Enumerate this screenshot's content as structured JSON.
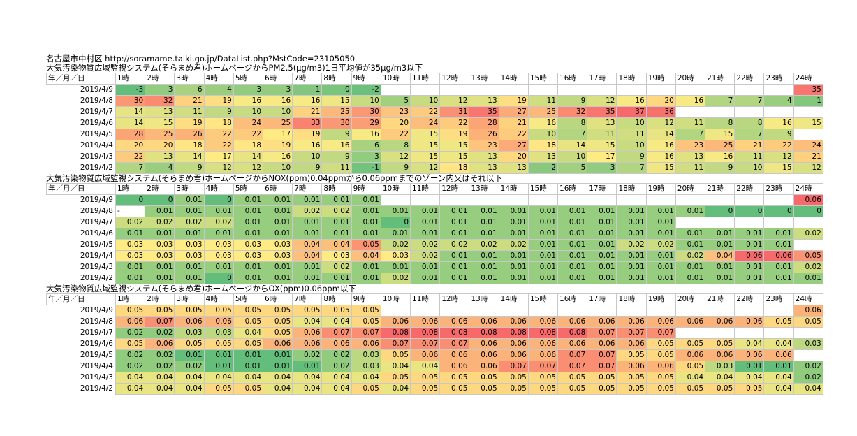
{
  "header_line": "名古屋市中村区 http://soramame.taiki.go.jp/DataList.php?MstCode=23105050",
  "hours": [
    "1時",
    "2時",
    "3時",
    "4時",
    "5時",
    "6時",
    "7時",
    "8時",
    "9時",
    "10時",
    "11時",
    "12時",
    "13時",
    "14時",
    "15時",
    "16時",
    "17時",
    "18時",
    "19時",
    "20時",
    "21時",
    "22時",
    "23時",
    "24時"
  ],
  "date_header": "年／月／日",
  "sections": [
    {
      "title": "大気汚染物質広域監視システム(そらまめ君)ホームページからPM2.5(μg/m3)1日平均値が35μg/m3以下",
      "kind": "pm",
      "rows": [
        {
          "date": "2019/4/9",
          "values": [
            "-3",
            "3",
            "6",
            "4",
            "3",
            "3",
            "1",
            "0",
            "-2",
            "",
            "",
            "",
            "",
            "",
            "",
            "",
            "",
            "",
            "",
            "",
            "",
            "",
            "",
            "35"
          ]
        },
        {
          "date": "2019/4/8",
          "values": [
            "30",
            "32",
            "21",
            "19",
            "16",
            "16",
            "16",
            "15",
            "10",
            "5",
            "10",
            "12",
            "13",
            "19",
            "11",
            "9",
            "12",
            "16",
            "20",
            "16",
            "7",
            "7",
            "4",
            "1"
          ]
        },
        {
          "date": "2019/4/7",
          "values": [
            "14",
            "13",
            "11",
            "9",
            "10",
            "10",
            "21",
            "25",
            "30",
            "23",
            "22",
            "31",
            "35",
            "27",
            "25",
            "32",
            "35",
            "37",
            "36",
            "",
            "",
            "",
            "",
            ""
          ]
        },
        {
          "date": "2019/4/6",
          "values": [
            "14",
            "15",
            "19",
            "18",
            "24",
            "25",
            "33",
            "30",
            "29",
            "20",
            "24",
            "22",
            "28",
            "21",
            "16",
            "8",
            "13",
            "10",
            "12",
            "11",
            "8",
            "8",
            "16",
            "15"
          ]
        },
        {
          "date": "2019/4/5",
          "values": [
            "28",
            "25",
            "26",
            "22",
            "22",
            "17",
            "19",
            "9",
            "16",
            "22",
            "15",
            "19",
            "26",
            "22",
            "10",
            "7",
            "11",
            "11",
            "14",
            "7",
            "15",
            "7",
            "9",
            ""
          ]
        },
        {
          "date": "2019/4/4",
          "values": [
            "20",
            "20",
            "18",
            "22",
            "18",
            "19",
            "16",
            "16",
            "6",
            "8",
            "15",
            "15",
            "23",
            "27",
            "18",
            "14",
            "15",
            "10",
            "16",
            "23",
            "25",
            "21",
            "22",
            "24"
          ]
        },
        {
          "date": "2019/4/3",
          "values": [
            "22",
            "13",
            "14",
            "17",
            "14",
            "16",
            "10",
            "9",
            "3",
            "12",
            "15",
            "15",
            "13",
            "20",
            "13",
            "10",
            "17",
            "9",
            "16",
            "13",
            "16",
            "11",
            "12",
            "21"
          ]
        },
        {
          "date": "2019/4/2",
          "values": [
            "7",
            "4",
            "9",
            "12",
            "12",
            "10",
            "9",
            "11",
            "-1",
            "9",
            "12",
            "18",
            "13",
            "13",
            "2",
            "5",
            "3",
            "7",
            "15",
            "11",
            "9",
            "10",
            "15",
            "12"
          ]
        }
      ]
    },
    {
      "title": "大気汚染物質広域監視システム(そらまめ君)ホームページからNOX(ppm)0.04ppmから0.06ppmまでのゾーン内又はそれ以下",
      "kind": "nox",
      "rows": [
        {
          "date": "2019/4/9",
          "values": [
            "0",
            "0",
            "0.01",
            "0",
            "0.01",
            "0.01",
            "0.01",
            "0.01",
            "0.01",
            "",
            "",
            "",
            "",
            "",
            "",
            "",
            "",
            "",
            "",
            "",
            "",
            "",
            "",
            "0.06"
          ]
        },
        {
          "date": "2019/4/8",
          "values": [
            "-",
            "0.01",
            "0.01",
            "0.01",
            "0.01",
            "0.01",
            "0.02",
            "0.02",
            "0.01",
            "0.01",
            "0.01",
            "0.01",
            "0.01",
            "0.01",
            "0.01",
            "0.01",
            "0.01",
            "0.01",
            "0.01",
            "0.01",
            "0",
            "0",
            "0",
            "0"
          ]
        },
        {
          "date": "2019/4/7",
          "values": [
            "0.02",
            "0.02",
            "0.02",
            "0.02",
            "0.01",
            "0.01",
            "0.01",
            "0.01",
            "0.01",
            "0",
            "0.01",
            "0.01",
            "0.01",
            "0.01",
            "0.01",
            "0.01",
            "0.01",
            "0.01",
            "0.01",
            "",
            "",
            "",
            "",
            ""
          ]
        },
        {
          "date": "2019/4/6",
          "values": [
            "0.01",
            "0.01",
            "0.01",
            "0.01",
            "0.01",
            "0.01",
            "0.01",
            "0.01",
            "0.01",
            "0.01",
            "0.01",
            "0.01",
            "0.01",
            "0.01",
            "0.01",
            "0.01",
            "0.01",
            "0.01",
            "0.01",
            "0.01",
            "0.01",
            "0.01",
            "0.01",
            "0.02"
          ]
        },
        {
          "date": "2019/4/5",
          "values": [
            "0.03",
            "0.03",
            "0.03",
            "0.03",
            "0.03",
            "0.03",
            "0.04",
            "0.04",
            "0.05",
            "0.02",
            "0.02",
            "0.02",
            "0.02",
            "0.02",
            "0.01",
            "0.01",
            "0.01",
            "0.02",
            "0.02",
            "0.01",
            "0.01",
            "0.01",
            "0.01",
            ""
          ]
        },
        {
          "date": "2019/4/4",
          "values": [
            "0.03",
            "0.03",
            "0.03",
            "0.03",
            "0.03",
            "0.03",
            "0.04",
            "0.03",
            "0.04",
            "0.03",
            "0.02",
            "0.01",
            "0.01",
            "0.01",
            "0.01",
            "0.01",
            "0.01",
            "0.01",
            "0.01",
            "0.02",
            "0.04",
            "0.06",
            "0.06",
            "0.05"
          ]
        },
        {
          "date": "2019/4/3",
          "values": [
            "0.01",
            "0.01",
            "0.01",
            "0.01",
            "0.01",
            "0.01",
            "0.01",
            "0.02",
            "0.01",
            "0.01",
            "0.01",
            "0.01",
            "0.01",
            "0.01",
            "0.01",
            "0.01",
            "0.01",
            "0.01",
            "0.01",
            "0.01",
            "0.01",
            "0.01",
            "0.01",
            "0.02"
          ]
        },
        {
          "date": "2019/4/2",
          "values": [
            "0.01",
            "0.01",
            "0.01",
            "0",
            "0.01",
            "0.01",
            "0.01",
            "0.01",
            "0.01",
            "0.02",
            "0.01",
            "0.01",
            "0.01",
            "0.01",
            "0.01",
            "0.01",
            "0.01",
            "0.01",
            "0.01",
            "0.01",
            "0.01",
            "0.01",
            "0.01",
            "0.01"
          ]
        }
      ]
    },
    {
      "title": "大気汚染物質広域監視システム(そらまめ君)ホームページからOX(ppm)0.06ppm以下",
      "kind": "ox",
      "rows": [
        {
          "date": "2019/4/9",
          "values": [
            "0.05",
            "0.05",
            "0.05",
            "0.05",
            "0.05",
            "0.05",
            "0.05",
            "0.05",
            "0.05",
            "",
            "",
            "",
            "",
            "",
            "",
            "",
            "",
            "",
            "",
            "",
            "",
            "",
            "",
            "0.06"
          ]
        },
        {
          "date": "2019/4/8",
          "values": [
            "0.06",
            "0.07",
            "0.06",
            "0.06",
            "0.05",
            "0.05",
            "0.04",
            "0.04",
            "0.05",
            "0.06",
            "0.06",
            "0.06",
            "0.06",
            "0.06",
            "0.06",
            "0.06",
            "0.06",
            "0.06",
            "0.06",
            "0.06",
            "0.06",
            "0.06",
            "0.05",
            "0.05"
          ]
        },
        {
          "date": "2019/4/7",
          "values": [
            "0.02",
            "0.02",
            "0.03",
            "0.03",
            "0.04",
            "0.05",
            "0.06",
            "0.07",
            "0.07",
            "0.08",
            "0.08",
            "0.08",
            "0.08",
            "0.08",
            "0.08",
            "0.08",
            "0.07",
            "0.07",
            "0.07",
            "",
            "",
            "",
            "",
            ""
          ]
        },
        {
          "date": "2019/4/6",
          "values": [
            "0.05",
            "0.06",
            "0.05",
            "0.05",
            "0.05",
            "0.06",
            "0.06",
            "0.06",
            "0.06",
            "0.07",
            "0.07",
            "0.07",
            "0.06",
            "0.06",
            "0.06",
            "0.06",
            "0.06",
            "0.06",
            "0.05",
            "0.05",
            "0.05",
            "0.04",
            "0.04",
            "0.03"
          ]
        },
        {
          "date": "2019/4/5",
          "values": [
            "0.02",
            "0.02",
            "0.01",
            "0.01",
            "0.01",
            "0.01",
            "0.02",
            "0.02",
            "0.03",
            "0.05",
            "0.06",
            "0.06",
            "0.06",
            "0.06",
            "0.06",
            "0.07",
            "0.07",
            "0.05",
            "0.05",
            "0.06",
            "0.06",
            "0.06",
            "0.06",
            ""
          ]
        },
        {
          "date": "2019/4/4",
          "values": [
            "0.02",
            "0.02",
            "0.02",
            "0.01",
            "0.01",
            "0.01",
            "0.01",
            "0.02",
            "0.03",
            "0.04",
            "0.04",
            "0.06",
            "0.06",
            "0.07",
            "0.07",
            "0.07",
            "0.07",
            "0.06",
            "0.06",
            "0.05",
            "0.03",
            "0.01",
            "0.01",
            "0.02"
          ]
        },
        {
          "date": "2019/4/3",
          "values": [
            "0.04",
            "0.04",
            "0.04",
            "0.04",
            "0.04",
            "0.04",
            "0.04",
            "0.04",
            "0.04",
            "0.05",
            "0.05",
            "0.05",
            "0.05",
            "0.05",
            "0.05",
            "0.05",
            "0.05",
            "0.05",
            "0.05",
            "0.04",
            "0.04",
            "0.04",
            "0.04",
            "0.02"
          ]
        },
        {
          "date": "2019/4/2",
          "values": [
            "0.04",
            "0.04",
            "0.04",
            "0.05",
            "0.05",
            "0.04",
            "0.04",
            "0.04",
            "0.05",
            "0.04",
            "0.05",
            "0.05",
            "0.05",
            "0.05",
            "0.05",
            "0.05",
            "0.05",
            "0.05",
            "0.05",
            "0.05",
            "0.05",
            "0.05",
            "0.04",
            "0.04"
          ]
        }
      ]
    }
  ]
}
